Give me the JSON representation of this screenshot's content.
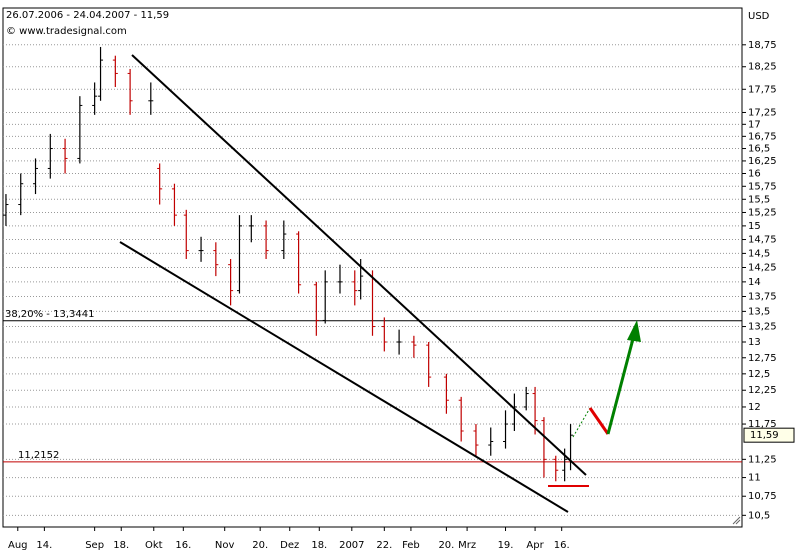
{
  "chart_data": {
    "type": "ohlc",
    "header": "26.07.2006 - 24.04.2007 - 11,59",
    "source": "© www.tradesignal.com",
    "currency": "USD",
    "log_scale": true,
    "grid": true,
    "up_color": "#000000",
    "down_color": "#c00000",
    "xlim": [
      0,
      250
    ],
    "ylim": [
      10.35,
      19.62
    ],
    "x": [
      1,
      6,
      11,
      16,
      21,
      26,
      31,
      33,
      38,
      43,
      50,
      53,
      58,
      62,
      67,
      72,
      77,
      80,
      84,
      89,
      95,
      100,
      106,
      109,
      114,
      119,
      121,
      125,
      129,
      134,
      139,
      144,
      150,
      155,
      160,
      165,
      170,
      173,
      177,
      180,
      183,
      187,
      190,
      192
    ],
    "open": [
      15.2,
      15.4,
      15.8,
      16.1,
      16.5,
      16.3,
      17.4,
      17.6,
      18.4,
      18.1,
      17.5,
      16.1,
      15.7,
      15.2,
      14.55,
      14.55,
      14.3,
      13.85,
      15.0,
      15.0,
      14.55,
      14.85,
      13.95,
      13.35,
      14.0,
      14.0,
      13.85,
      14.1,
      13.25,
      13.0,
      13.0,
      12.95,
      12.45,
      12.1,
      11.65,
      11.45,
      11.5,
      11.75,
      12.0,
      12.2,
      11.8,
      11.25,
      11.1,
      11.25
    ],
    "high": [
      15.6,
      16.0,
      16.3,
      16.8,
      16.7,
      17.6,
      17.9,
      18.7,
      18.5,
      18.2,
      17.9,
      16.2,
      15.8,
      15.3,
      14.8,
      14.7,
      14.4,
      15.2,
      15.2,
      15.1,
      15.1,
      14.9,
      14.0,
      14.2,
      14.3,
      14.2,
      14.4,
      14.2,
      13.4,
      13.2,
      13.1,
      13.0,
      12.5,
      12.15,
      11.75,
      11.7,
      11.95,
      12.2,
      12.3,
      12.3,
      11.85,
      11.3,
      11.4,
      11.75
    ],
    "low": [
      15.0,
      15.2,
      15.6,
      15.9,
      16.0,
      16.2,
      17.2,
      17.5,
      17.8,
      17.2,
      17.2,
      15.4,
      15.0,
      14.4,
      14.35,
      14.1,
      13.6,
      13.8,
      14.7,
      14.4,
      14.4,
      13.8,
      13.1,
      13.3,
      13.8,
      13.6,
      13.7,
      13.1,
      12.85,
      12.8,
      12.75,
      12.3,
      11.9,
      11.5,
      11.3,
      11.3,
      11.4,
      11.65,
      11.95,
      11.6,
      11.0,
      10.95,
      10.95,
      11.1
    ],
    "close": [
      15.4,
      15.8,
      16.1,
      16.5,
      16.3,
      17.4,
      17.6,
      18.4,
      18.1,
      17.5,
      17.5,
      15.7,
      15.2,
      14.55,
      14.55,
      14.3,
      13.85,
      15.0,
      15.0,
      14.55,
      14.85,
      13.95,
      13.35,
      14.0,
      14.0,
      13.85,
      14.1,
      13.25,
      13.0,
      13.0,
      12.95,
      12.45,
      12.1,
      11.65,
      11.45,
      11.5,
      11.75,
      12.0,
      12.2,
      11.8,
      11.25,
      11.1,
      11.25,
      11.59
    ],
    "levels": [
      {
        "label": "38,20% - 13,3441",
        "value": 13.3441,
        "color": "#000000"
      },
      {
        "label": "11,2152",
        "value": 11.2152,
        "color": "#c00000"
      }
    ],
    "last_price": {
      "value": 11.59,
      "label": "11,59"
    },
    "xticks": [
      {
        "value": 5,
        "label": "Aug"
      },
      {
        "value": 14,
        "label": "14."
      },
      {
        "value": 31,
        "label": "Sep"
      },
      {
        "value": 40,
        "label": "18."
      },
      {
        "value": 51,
        "label": "Okt"
      },
      {
        "value": 61,
        "label": "16."
      },
      {
        "value": 75,
        "label": "Nov"
      },
      {
        "value": 87,
        "label": "20."
      },
      {
        "value": 97,
        "label": "Dez"
      },
      {
        "value": 107,
        "label": "18."
      },
      {
        "value": 118,
        "label": "2007"
      },
      {
        "value": 129,
        "label": "22."
      },
      {
        "value": 138,
        "label": "Feb"
      },
      {
        "value": 150,
        "label": "20."
      },
      {
        "value": 157,
        "label": "Mrz"
      },
      {
        "value": 170,
        "label": "19."
      },
      {
        "value": 180,
        "label": "Apr"
      },
      {
        "value": 189,
        "label": "16."
      }
    ],
    "yticks": [
      {
        "value": 10.5,
        "label": "10,5"
      },
      {
        "value": 10.75,
        "label": "10,75"
      },
      11,
      {
        "value": 11.25,
        "label": "11,25"
      },
      {
        "value": 11.75,
        "label": "11,75"
      },
      12,
      {
        "value": 12.25,
        "label": "12,25"
      },
      {
        "value": 12.5,
        "label": "12,5"
      },
      {
        "value": 12.75,
        "label": "12,75"
      },
      13,
      {
        "value": 13.25,
        "label": "13,25"
      },
      {
        "value": 13.5,
        "label": "13,5"
      },
      {
        "value": 13.75,
        "label": "13,75"
      },
      14,
      {
        "value": 14.25,
        "label": "14,25"
      },
      {
        "value": 14.5,
        "label": "14,5"
      },
      {
        "value": 14.75,
        "label": "14,75"
      },
      15,
      {
        "value": 15.25,
        "label": "15,25"
      },
      {
        "value": 15.5,
        "label": "15,5"
      },
      {
        "value": 15.75,
        "label": "15,75"
      },
      16,
      {
        "value": 16.25,
        "label": "16,25"
      },
      {
        "value": 16.5,
        "label": "16,5"
      },
      {
        "value": 16.75,
        "label": "16,75"
      },
      17,
      {
        "value": 17.25,
        "label": "17,25"
      },
      {
        "value": 17.75,
        "label": "17,75"
      },
      {
        "value": 18.25,
        "label": "18,25"
      },
      {
        "value": 18.75,
        "label": "18,75"
      }
    ]
  }
}
